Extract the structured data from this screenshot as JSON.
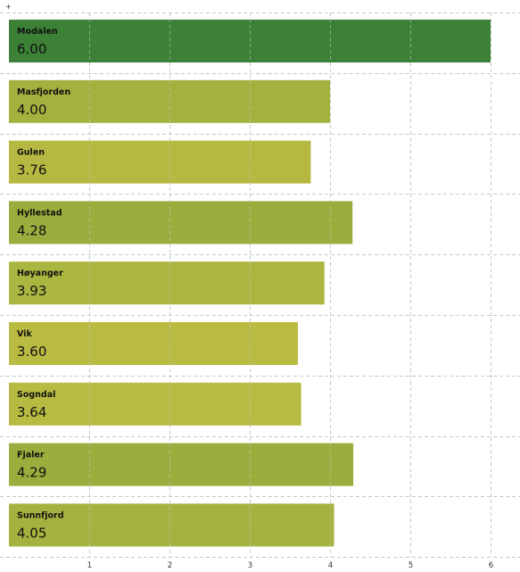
{
  "corner_mark": "+",
  "chart_data": {
    "type": "bar",
    "orientation": "horizontal",
    "categories": [
      "Modalen",
      "Masfjorden",
      "Gulen",
      "Hyllestad",
      "Høyanger",
      "Vik",
      "Sogndal",
      "Fjaler",
      "Sunnfjord"
    ],
    "values": [
      6.0,
      4.0,
      3.76,
      4.28,
      3.93,
      3.6,
      3.64,
      4.29,
      4.05
    ],
    "value_labels": [
      "6.00",
      "4.00",
      "3.76",
      "4.28",
      "3.93",
      "3.60",
      "3.64",
      "4.29",
      "4.05"
    ],
    "bar_colors": [
      "#3c8136",
      "#a3b13f",
      "#b6b941",
      "#9aad3d",
      "#abb640",
      "#b9bb42",
      "#b8bb41",
      "#9aad3d",
      "#a4b23f"
    ],
    "xlim": [
      0,
      6.4
    ],
    "x_ticks": [
      1,
      2,
      3,
      4,
      5,
      6
    ],
    "x_tick_labels": [
      "1",
      "2",
      "3",
      "4",
      "5",
      "6"
    ],
    "grid": true,
    "title": "",
    "xlabel": "",
    "ylabel": ""
  }
}
